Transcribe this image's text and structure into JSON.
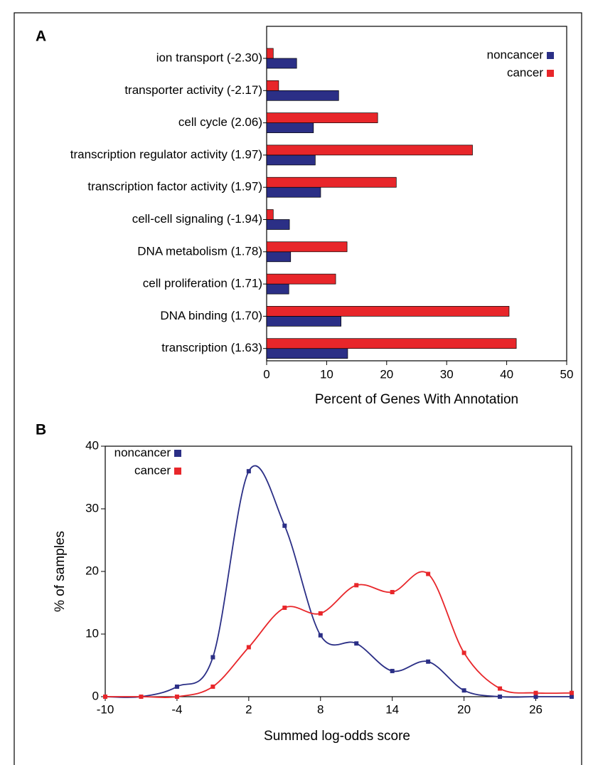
{
  "chart_data": [
    {
      "type": "hbar",
      "panel_label": "A",
      "categories": [
        "ion transport (-2.30)",
        "transporter activity (-2.17)",
        "cell cycle (2.06)",
        "transcription regulator activity (1.97)",
        "transcription factor activity (1.97)",
        "cell-cell signaling (-1.94)",
        "DNA metabolism (1.78)",
        "cell proliferation (1.71)",
        "DNA binding (1.70)",
        "transcription (1.63)"
      ],
      "series": [
        {
          "name": "noncancer",
          "color": "#2b2f86",
          "values": [
            5.0,
            12.0,
            7.8,
            8.1,
            9.0,
            3.8,
            4.0,
            3.7,
            12.4,
            13.5
          ]
        },
        {
          "name": "cancer",
          "color": "#e8262a",
          "values": [
            1.1,
            2.0,
            18.5,
            34.3,
            21.6,
            1.1,
            13.4,
            11.5,
            40.4,
            41.6
          ]
        }
      ],
      "xlabel": "Percent of Genes With Annotation",
      "xlim": [
        0,
        50
      ],
      "xticks": [
        0,
        10,
        20,
        30,
        40,
        50
      ]
    },
    {
      "type": "line",
      "panel_label": "B",
      "x": [
        -10,
        -7,
        -4,
        -1,
        2,
        5,
        8,
        11,
        14,
        17,
        20,
        23,
        26,
        29
      ],
      "series": [
        {
          "name": "noncancer",
          "color": "#2b2f86",
          "values": [
            0,
            0,
            1.6,
            6.3,
            36,
            27.3,
            9.8,
            8.5,
            4.1,
            5.6,
            1.0,
            0,
            0,
            0
          ]
        },
        {
          "name": "cancer",
          "color": "#e8262a",
          "values": [
            0,
            0,
            0,
            1.6,
            7.9,
            14.2,
            13.3,
            17.8,
            16.7,
            19.6,
            7.0,
            1.3,
            0.6,
            0.6
          ]
        }
      ],
      "xlabel": "Summed log-odds score",
      "ylabel": "% of samples",
      "xlim": [
        -10,
        29
      ],
      "xticks": [
        -10,
        -4,
        2,
        8,
        14,
        20,
        26
      ],
      "ylim": [
        0,
        40
      ],
      "yticks": [
        0,
        10,
        20,
        30,
        40
      ]
    }
  ]
}
